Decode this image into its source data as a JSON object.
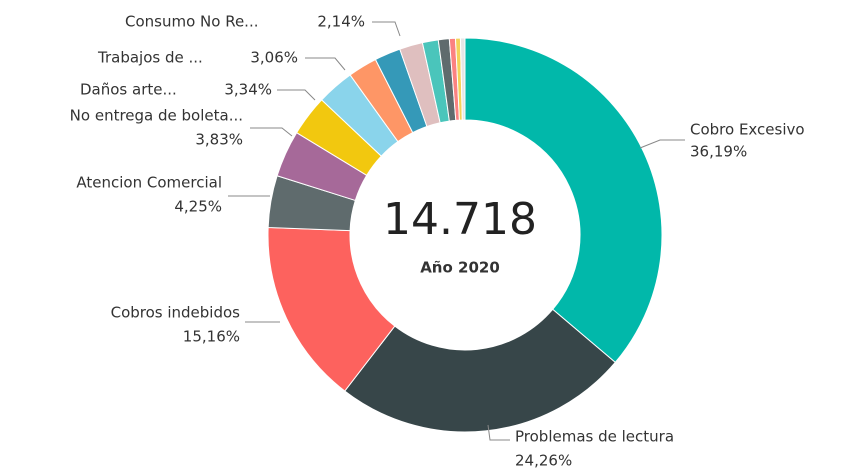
{
  "chart_data": {
    "type": "donut",
    "center_value": "14.718",
    "center_label": "Año 2020",
    "categories": [
      "Cobro Excesivo",
      "Problemas de lectura",
      "Cobros indebidos",
      "Atencion Comercial",
      "No entrega de boleta...",
      "Daños arte...",
      "Trabajos de ...",
      null,
      "Consumo No Re...",
      null,
      null,
      null,
      null,
      null,
      null
    ],
    "values": [
      36.19,
      24.26,
      15.16,
      4.25,
      3.83,
      3.34,
      3.06,
      2.4,
      2.14,
      1.9,
      1.3,
      0.9,
      0.5,
      0.4,
      0.37
    ],
    "value_labels": [
      "36,19%",
      "24,26%",
      "15,16%",
      "4,25%",
      "3,83%",
      "3,34%",
      "3,06%",
      null,
      "2,14%",
      null,
      null,
      null,
      null,
      null,
      null
    ],
    "colors": [
      "#01b8aa",
      "#374649",
      "#fd625e",
      "#5f6b6d",
      "#a66999",
      "#f2c80f",
      "#8ad4eb",
      "#fe9666",
      "#3599b8",
      "#dfbfbf",
      "#4ac5bb",
      "#5f6b6d",
      "#fb8281",
      "#f4d25a",
      "#e6e6e6"
    ]
  }
}
